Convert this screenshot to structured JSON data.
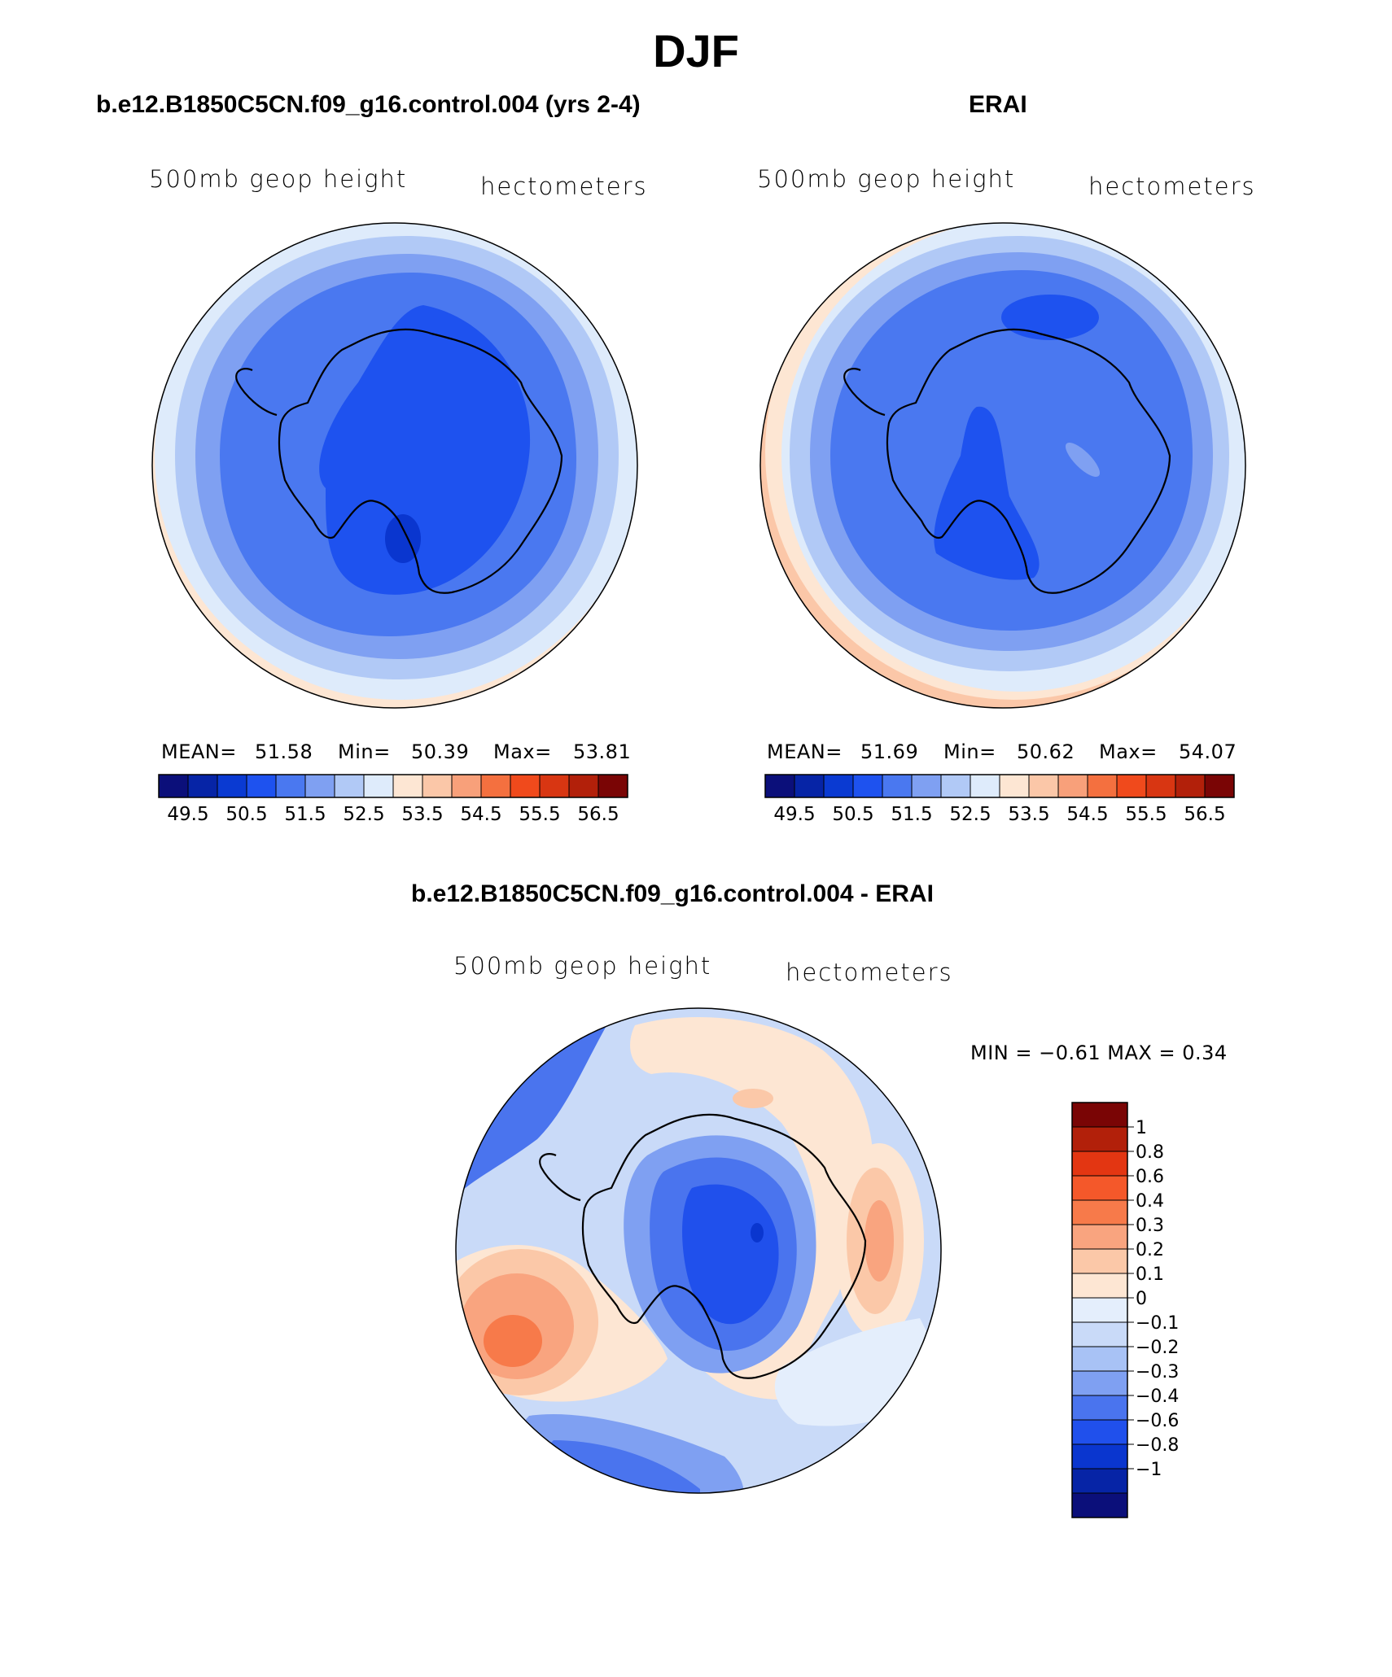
{
  "title": "DJF",
  "panels": {
    "model": {
      "title": "b.e12.B1850C5CN.f09_g16.control.004 (yrs 2-4)",
      "left_label": "500mb  geop  height",
      "right_label": "hectometers",
      "mean_label": "MEAN=",
      "mean": "51.58",
      "min_label": "Min=",
      "min": "50.39",
      "max_label": "Max=",
      "max": "53.81"
    },
    "obs": {
      "title": "ERAI",
      "left_label": "500mb  geop  height",
      "right_label": "hectometers",
      "mean_label": "MEAN=",
      "mean": "51.69",
      "min_label": "Min=",
      "min": "50.62",
      "max_label": "Max=",
      "max": "54.07"
    },
    "diff": {
      "title": "b.e12.B1850C5CN.f09_g16.control.004 - ERAI",
      "left_label": "500mb  geop  height",
      "right_label": "hectometers",
      "minmax": "MIN =   −0.61  MAX =     0.34"
    }
  },
  "colorbar_abs": {
    "colors": [
      "#0b0f7a",
      "#0624a6",
      "#0a3ad2",
      "#1e52ef",
      "#4a78f0",
      "#7fa0f2",
      "#b1c9f6",
      "#deebfb",
      "#fde6d3",
      "#fbc7a8",
      "#f8a07a",
      "#f4703f",
      "#f04a1c",
      "#d83612",
      "#b2200a",
      "#7a0505"
    ],
    "labels": [
      "49.5",
      "50.5",
      "51.5",
      "52.5",
      "53.5",
      "54.5",
      "55.5",
      "56.5"
    ]
  },
  "colorbar_diff": {
    "colors": [
      "#7a0505",
      "#b2200a",
      "#e33612",
      "#f4582a",
      "#f77a4a",
      "#f9a47f",
      "#fbc8a8",
      "#fde6d3",
      "#e4eefc",
      "#c9daf8",
      "#a8c2f5",
      "#7fa0f2",
      "#4a74ee",
      "#2050ec",
      "#0a36cf",
      "#0624a6",
      "#0b0f7a"
    ],
    "labels": [
      "1",
      "0.8",
      "0.6",
      "0.4",
      "0.3",
      "0.2",
      "0.1",
      "0",
      "−0.1",
      "−0.2",
      "−0.3",
      "−0.4",
      "−0.6",
      "−0.8",
      "−1"
    ]
  },
  "field_colors": {
    "b0": "#0a36cf",
    "b1": "#1e52ef",
    "b2": "#4a78f0",
    "b3": "#7fa0f2",
    "b4": "#b1c9f6",
    "b5": "#deebfb",
    "r0": "#fde6d3",
    "r1": "#fbc7a8",
    "r2": "#f8a07a",
    "r3": "#f4703f",
    "d0": "#e4eefc",
    "d1": "#c9daf8"
  }
}
